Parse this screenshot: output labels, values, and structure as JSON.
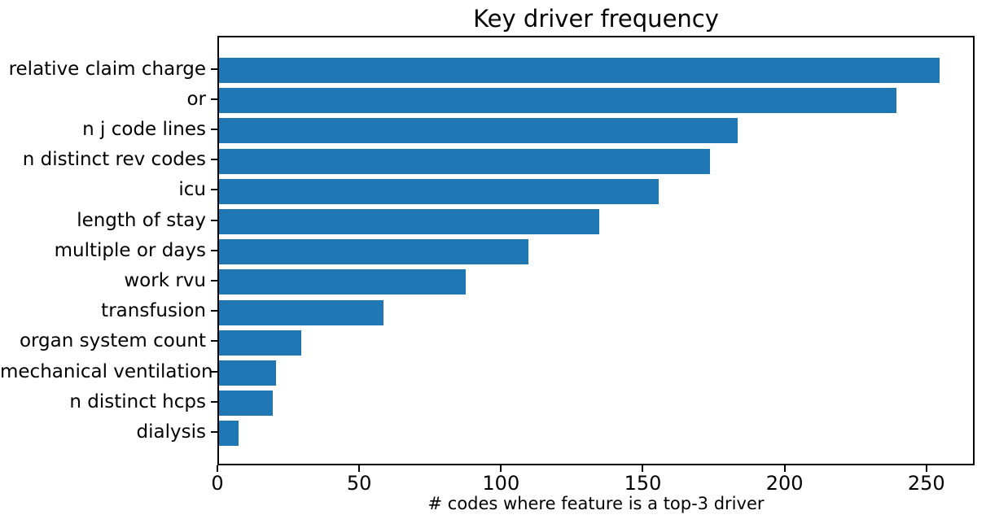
{
  "chart_data": {
    "type": "bar",
    "orientation": "horizontal",
    "title": "Key driver frequency",
    "xlabel": "# codes where feature is a top-3 driver",
    "ylabel": "",
    "categories": [
      "relative claim charge",
      "or",
      "n j code lines",
      "n distinct rev codes",
      "icu",
      "length of stay",
      "multiple or days",
      "work rvu",
      "transfusion",
      "organ system count",
      "mechanical ventilation",
      "n distinct hcps",
      "dialysis"
    ],
    "values": [
      254,
      239,
      183,
      173,
      155,
      134,
      109,
      87,
      58,
      29,
      20,
      19,
      7
    ],
    "x_ticks": [
      0,
      50,
      100,
      150,
      200,
      250
    ],
    "xlim": [
      0,
      267
    ],
    "bar_color": "#1f77b4",
    "background_color": "#ffffff",
    "grid": false,
    "legend": null
  }
}
